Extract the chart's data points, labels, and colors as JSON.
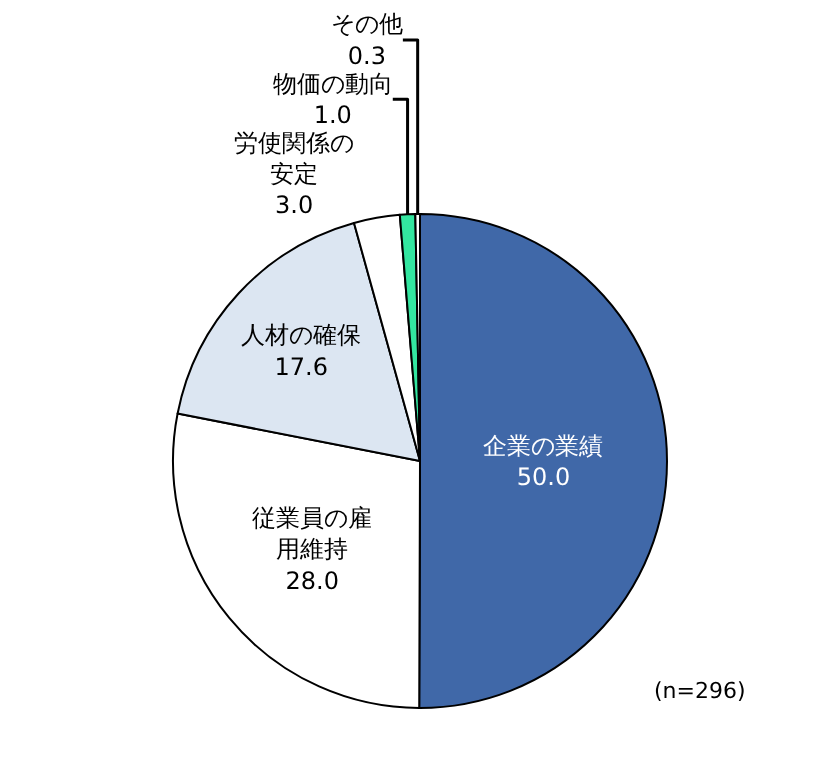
{
  "chart_data": {
    "type": "pie",
    "categories": [
      "企業の業績",
      "従業員の雇用維持",
      "人材の確保",
      "労使関係の安定",
      "物価の動向",
      "その他"
    ],
    "values": [
      50.0,
      28.0,
      17.6,
      3.0,
      1.0,
      0.3
    ],
    "value_labels": [
      "50.0",
      "28.0",
      "17.6",
      "3.0",
      "1.0",
      "0.3"
    ],
    "colors": [
      "#4068a8",
      "#ffffff",
      "#dce6f2",
      "#ffffff",
      "#33e6a0",
      "#ffffff"
    ],
    "annotations": [
      "(n=296)"
    ],
    "legend": false
  }
}
